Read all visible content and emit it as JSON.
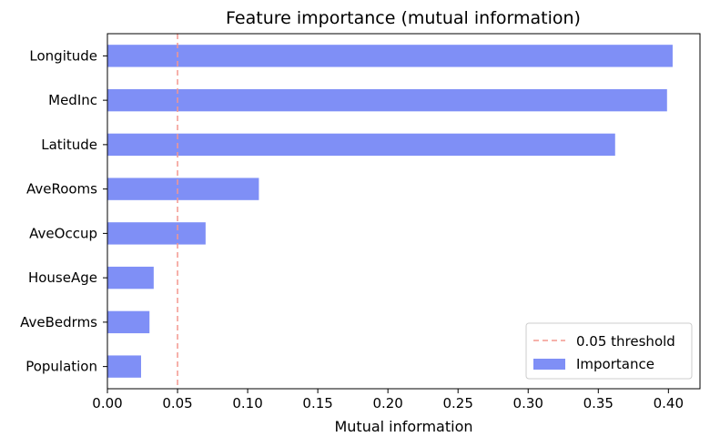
{
  "chart_data": {
    "type": "bar",
    "orientation": "horizontal",
    "title": "Feature importance (mutual information)",
    "xlabel": "Mutual information",
    "ylabel": "",
    "categories": [
      "Longitude",
      "MedInc",
      "Latitude",
      "AveRooms",
      "AveOccup",
      "HouseAge",
      "AveBedrms",
      "Population"
    ],
    "series": [
      {
        "name": "Importance",
        "color": "#7f8ff6",
        "values": [
          0.403,
          0.399,
          0.362,
          0.108,
          0.07,
          0.033,
          0.03,
          0.024
        ]
      }
    ],
    "xlim": [
      0.0,
      0.4225
    ],
    "xticks": [
      0.0,
      0.05,
      0.1,
      0.15,
      0.2,
      0.25,
      0.3,
      0.35,
      0.4
    ],
    "xtick_labels": [
      "0.00",
      "0.05",
      "0.10",
      "0.15",
      "0.20",
      "0.25",
      "0.30",
      "0.35",
      "0.40"
    ],
    "reference_line": {
      "value": 0.05,
      "label": "0.05 threshold",
      "color": "#f4978e",
      "style": "dashed"
    },
    "legend": {
      "placement": "bottom-right",
      "entries": [
        "0.05 threshold",
        "Importance"
      ]
    },
    "grid": false
  }
}
